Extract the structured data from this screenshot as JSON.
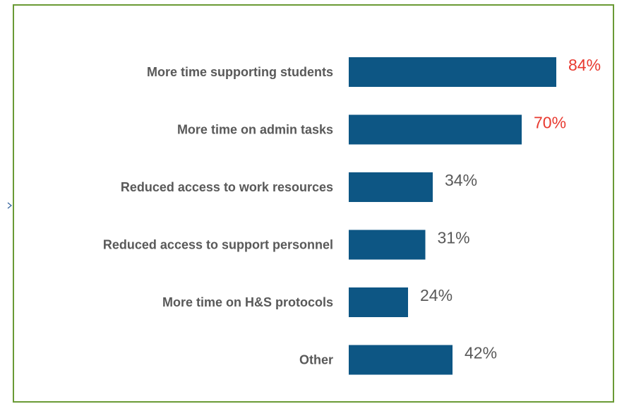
{
  "chart_data": {
    "type": "bar",
    "orientation": "horizontal",
    "categories": [
      "More time supporting students",
      "More time on admin tasks",
      "Reduced access to work resources",
      "Reduced access to support personnel",
      "More time on H&S protocols",
      "Other"
    ],
    "values": [
      84,
      70,
      34,
      31,
      24,
      42
    ],
    "value_labels": [
      "84%",
      "70%",
      "34%",
      "31%",
      "24%",
      "42%"
    ],
    "unit": "%",
    "xlim": [
      0,
      100
    ],
    "grid": false,
    "legend": "none",
    "colors": {
      "bar": "#0d5684",
      "label_highlight": "#e8392f",
      "label_normal": "#595959",
      "category_text": "#595959",
      "frame_border": "#6a9a35"
    },
    "highlighted_indices": [
      0,
      1
    ]
  }
}
